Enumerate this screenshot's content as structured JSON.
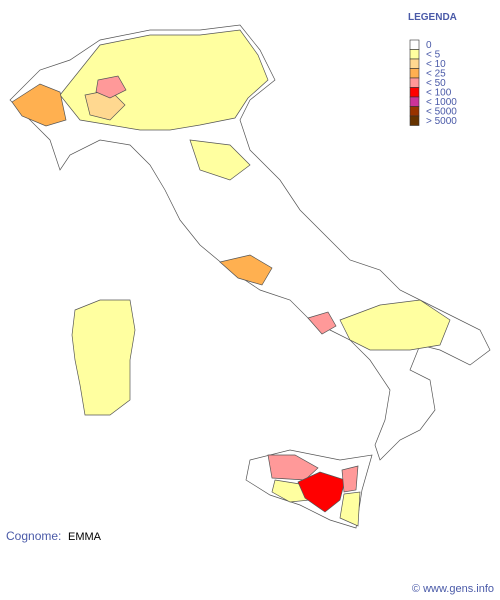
{
  "legend": {
    "title": "LEGENDA",
    "items": [
      {
        "label": "0",
        "color": "#ffffff"
      },
      {
        "label": "< 5",
        "color": "#ffffa0"
      },
      {
        "label": "< 10",
        "color": "#ffd890"
      },
      {
        "label": "< 25",
        "color": "#ffb050"
      },
      {
        "label": "< 50",
        "color": "#ff9999"
      },
      {
        "label": "< 100",
        "color": "#ff0000"
      },
      {
        "label": "< 1000",
        "color": "#cc3399"
      },
      {
        "label": "< 5000",
        "color": "#993300"
      },
      {
        "label": "> 5000",
        "color": "#663300"
      }
    ]
  },
  "surname": {
    "label": "Cognome:",
    "value": "EMMA"
  },
  "footer": "© www.gens.info"
}
